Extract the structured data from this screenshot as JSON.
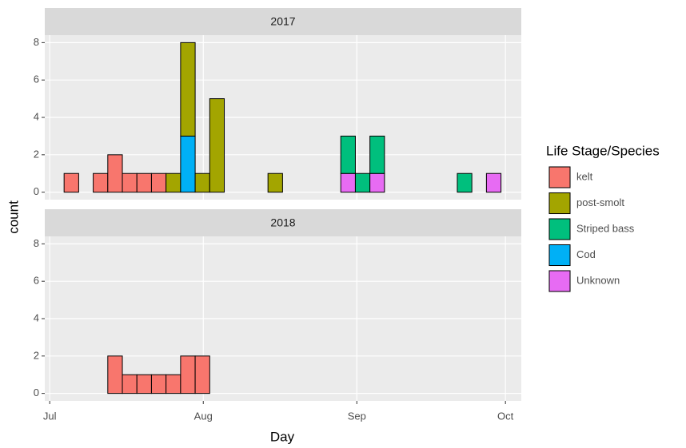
{
  "chart_data": {
    "type": "histogram",
    "xlabel": "Day",
    "ylabel": "count",
    "legend_title": "Life Stage/Species",
    "facets": [
      "2017",
      "2018"
    ],
    "xlim": [
      181,
      277.2
    ],
    "xticks": [
      {
        "value": 182,
        "label": "Jul"
      },
      {
        "value": 213,
        "label": "Aug"
      },
      {
        "value": 244,
        "label": "Sep"
      },
      {
        "value": 274,
        "label": "Oct"
      }
    ],
    "ylim": [
      -0.4,
      8.4
    ],
    "yticks": [
      0,
      2,
      4,
      6,
      8
    ],
    "grid": true,
    "bins": [
      184.9,
      187.84,
      190.78,
      193.72,
      196.66,
      199.6,
      202.54,
      205.48,
      208.42,
      211.36,
      214.3,
      217.24,
      220.18,
      223.12,
      226.06,
      229.0,
      231.94,
      234.88,
      237.82,
      240.76,
      243.7,
      246.64,
      249.58,
      252.52,
      255.46,
      258.4,
      261.34,
      264.28,
      267.22,
      270.16,
      273.1
    ],
    "series": [
      {
        "name": "kelt",
        "color": "#F8766D",
        "values": [
          [
            1,
            0,
            1,
            2,
            1,
            1,
            1,
            0,
            0,
            0,
            0,
            0,
            0,
            0,
            0,
            0,
            0,
            0,
            0,
            0,
            0,
            0,
            0,
            0,
            0,
            0,
            0,
            0,
            0,
            0
          ],
          [
            0,
            0,
            0,
            2,
            1,
            1,
            1,
            1,
            2,
            2,
            0,
            0,
            0,
            0,
            0,
            0,
            0,
            0,
            0,
            0,
            0,
            0,
            0,
            0,
            0,
            0,
            0,
            0,
            0,
            0
          ]
        ]
      },
      {
        "name": "post-smolt",
        "color": "#A3A500",
        "values": [
          [
            0,
            0,
            0,
            0,
            0,
            0,
            0,
            1,
            5,
            1,
            5,
            0,
            0,
            0,
            1,
            0,
            0,
            0,
            0,
            0,
            0,
            0,
            0,
            0,
            0,
            0,
            0,
            0,
            0,
            0
          ],
          [
            0,
            0,
            0,
            0,
            0,
            0,
            0,
            0,
            0,
            0,
            0,
            0,
            0,
            0,
            0,
            0,
            0,
            0,
            0,
            0,
            0,
            0,
            0,
            0,
            0,
            0,
            0,
            0,
            0,
            0
          ]
        ]
      },
      {
        "name": "Striped bass",
        "color": "#00BF7D",
        "values": [
          [
            0,
            0,
            0,
            0,
            0,
            0,
            0,
            0,
            0,
            0,
            0,
            0,
            0,
            0,
            0,
            0,
            0,
            0,
            0,
            2,
            1,
            2,
            0,
            0,
            0,
            0,
            0,
            1,
            0,
            0
          ],
          [
            0,
            0,
            0,
            0,
            0,
            0,
            0,
            0,
            0,
            0,
            0,
            0,
            0,
            0,
            0,
            0,
            0,
            0,
            0,
            0,
            0,
            0,
            0,
            0,
            0,
            0,
            0,
            0,
            0,
            0
          ]
        ]
      },
      {
        "name": "Cod",
        "color": "#00B0F6",
        "values": [
          [
            0,
            0,
            0,
            0,
            0,
            0,
            0,
            0,
            3,
            0,
            0,
            0,
            0,
            0,
            0,
            0,
            0,
            0,
            0,
            0,
            0,
            0,
            0,
            0,
            0,
            0,
            0,
            0,
            0,
            0
          ],
          [
            0,
            0,
            0,
            0,
            0,
            0,
            0,
            0,
            0,
            0,
            0,
            0,
            0,
            0,
            0,
            0,
            0,
            0,
            0,
            0,
            0,
            0,
            0,
            0,
            0,
            0,
            0,
            0,
            0,
            0
          ]
        ]
      },
      {
        "name": "Unknown",
        "color": "#E76BF3",
        "values": [
          [
            0,
            0,
            0,
            0,
            0,
            0,
            0,
            0,
            0,
            0,
            0,
            0,
            0,
            0,
            0,
            0,
            0,
            0,
            0,
            1,
            0,
            1,
            0,
            0,
            0,
            0,
            0,
            0,
            0,
            1
          ],
          [
            0,
            0,
            0,
            0,
            0,
            0,
            0,
            0,
            0,
            0,
            0,
            0,
            0,
            0,
            0,
            0,
            0,
            0,
            0,
            0,
            0,
            0,
            0,
            0,
            0,
            0,
            0,
            0,
            0,
            0
          ]
        ]
      }
    ]
  }
}
